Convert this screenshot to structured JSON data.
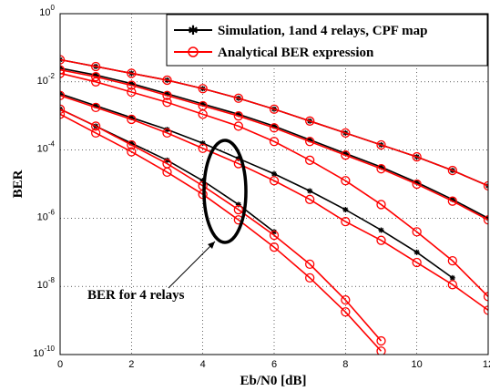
{
  "chart_data": {
    "type": "line",
    "title": "",
    "xlabel": "Eb/N0 [dB]",
    "ylabel": "BER",
    "xlim": [
      0,
      12
    ],
    "ylim_exponent": [
      -10,
      0
    ],
    "y_scale": "log",
    "grid": true,
    "x_ticks": [
      0,
      2,
      4,
      6,
      8,
      10,
      12
    ],
    "y_tick_exponents": [
      -10,
      -8,
      -6,
      -4,
      -2,
      0
    ],
    "y_tick_base": "10",
    "legend_position": "top-right",
    "legend": [
      {
        "label": "Simulation, 1and 4 relays, CPF map",
        "color": "#000000",
        "marker": "asterisk"
      },
      {
        "label": "Analytical BER expression",
        "color": "#ff0000",
        "marker": "circle"
      }
    ],
    "annotation": {
      "text": "BER for 4 relays",
      "x": 4.7,
      "y": -5.6
    },
    "series_simulation": [
      {
        "x": [
          0,
          1,
          2,
          3,
          4,
          5,
          6,
          7,
          8,
          9,
          10,
          11,
          12
        ],
        "y": [
          -1.35,
          -1.55,
          -1.75,
          -1.95,
          -2.2,
          -2.48,
          -2.8,
          -3.15,
          -3.5,
          -3.85,
          -4.2,
          -4.6,
          -5.05
        ]
      },
      {
        "x": [
          0,
          1,
          2,
          3,
          4,
          5,
          6,
          7,
          8,
          9,
          10,
          11,
          12
        ],
        "y": [
          -1.6,
          -1.8,
          -2.05,
          -2.35,
          -2.65,
          -2.95,
          -3.3,
          -3.7,
          -4.1,
          -4.5,
          -4.95,
          -5.45,
          -6.0
        ]
      },
      {
        "x": [
          0,
          1,
          2,
          3,
          4,
          5,
          6,
          7,
          8,
          9,
          10,
          11
        ],
        "y": [
          -2.35,
          -2.7,
          -3.05,
          -3.4,
          -3.8,
          -4.25,
          -4.7,
          -5.2,
          -5.75,
          -6.35,
          -7.0,
          -7.75
        ]
      },
      {
        "x": [
          0,
          1,
          2,
          3,
          4,
          5,
          6
        ],
        "y": [
          -2.8,
          -3.3,
          -3.8,
          -4.3,
          -4.9,
          -5.6,
          -6.4
        ]
      }
    ],
    "series_analytical": [
      {
        "x": [
          0,
          1,
          2,
          3,
          4,
          5,
          6,
          7,
          8,
          9,
          10,
          11,
          12
        ],
        "y": [
          -1.35,
          -1.55,
          -1.75,
          -1.95,
          -2.2,
          -2.48,
          -2.8,
          -3.15,
          -3.5,
          -3.85,
          -4.2,
          -4.6,
          -5.05
        ]
      },
      {
        "x": [
          0,
          1,
          2,
          3,
          4,
          5,
          6,
          7,
          8,
          9,
          10,
          11,
          12
        ],
        "y": [
          -1.65,
          -1.85,
          -2.1,
          -2.4,
          -2.7,
          -3.0,
          -3.35,
          -3.75,
          -4.15,
          -4.55,
          -5.0,
          -5.5,
          -6.05
        ]
      },
      {
        "x": [
          0,
          1,
          2,
          3,
          4,
          5,
          6,
          7,
          8,
          9,
          10,
          11,
          12
        ],
        "y": [
          -2.4,
          -2.75,
          -3.1,
          -3.5,
          -3.95,
          -4.4,
          -4.9,
          -5.45,
          -6.1,
          -6.65,
          -7.3,
          -7.95,
          -8.7
        ]
      },
      {
        "x": [
          0,
          1,
          2,
          3,
          4,
          5,
          6,
          7,
          8,
          9,
          10,
          11,
          12
        ],
        "y": [
          -1.75,
          -2.0,
          -2.3,
          -2.6,
          -2.95,
          -3.3,
          -3.75,
          -4.3,
          -4.9,
          -5.6,
          -6.4,
          -7.25,
          -8.3
        ]
      },
      {
        "x": [
          0,
          1,
          2,
          3,
          4,
          5,
          6,
          7,
          8,
          9
        ],
        "y": [
          -2.8,
          -3.3,
          -3.85,
          -4.4,
          -5.05,
          -5.75,
          -6.5,
          -7.35,
          -8.4,
          -9.6
        ]
      },
      {
        "x": [
          0,
          1,
          2,
          3,
          4,
          5,
          6,
          7,
          8,
          9
        ],
        "y": [
          -2.95,
          -3.5,
          -4.05,
          -4.65,
          -5.3,
          -6.05,
          -6.85,
          -7.75,
          -8.75,
          -9.9
        ]
      }
    ],
    "colors": {
      "simulation": "#000000",
      "analytical": "#ff0000"
    }
  }
}
